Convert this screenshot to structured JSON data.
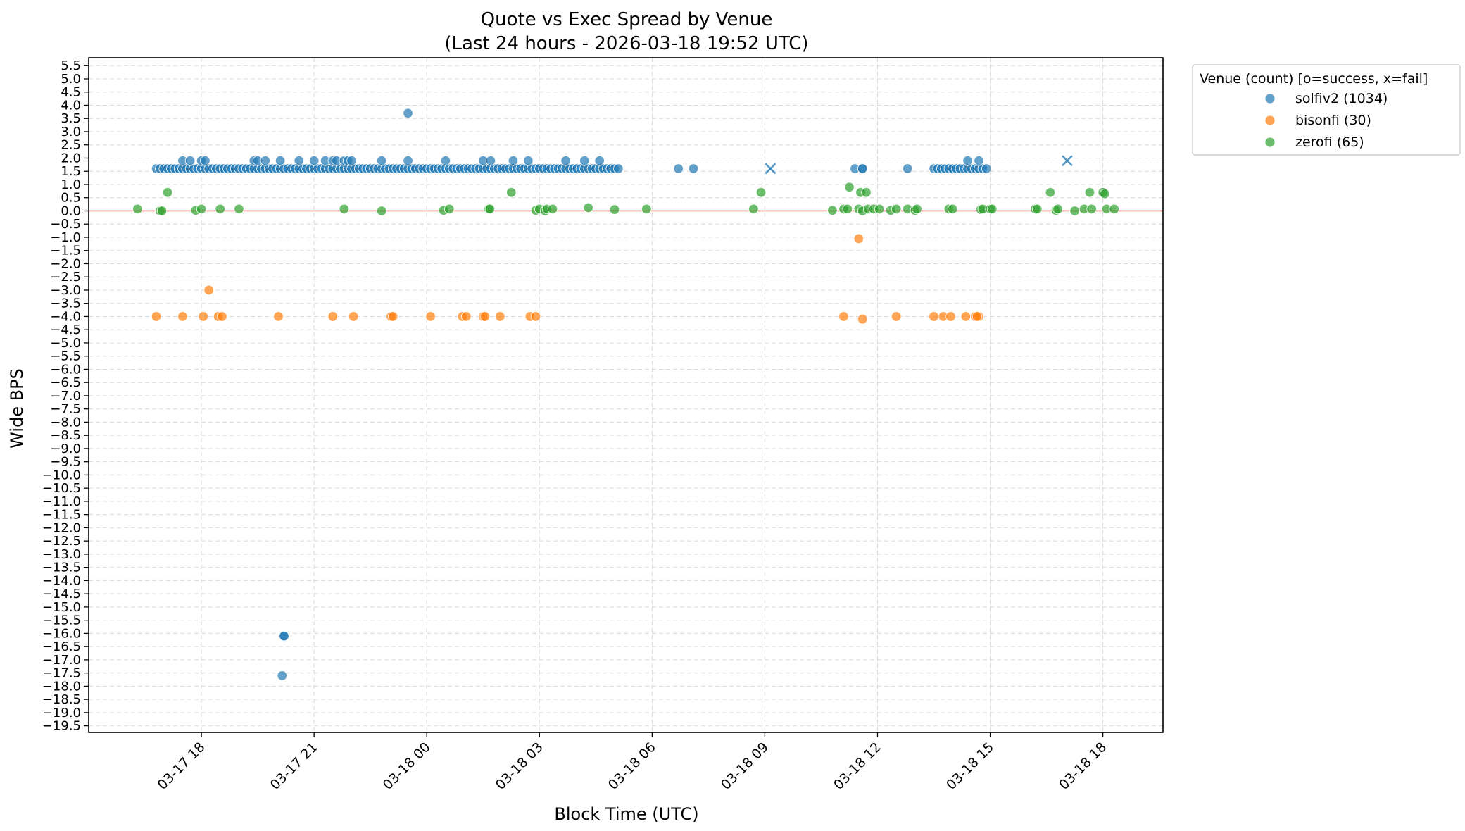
{
  "chart_data": {
    "type": "scatter",
    "title": "Quote vs Exec Spread by Venue",
    "subtitle": "(Last 24 hours - 2026-03-18 19:52 UTC)",
    "xlabel": "Block Time (UTC)",
    "ylabel": "Wide BPS",
    "x_unit": "hours relative to 2026-03-18 00:00 UTC",
    "xlim": [
      -9.0,
      19.6
    ],
    "ylim": [
      -19.75,
      5.8
    ],
    "x_ticks": [
      {
        "x": -6,
        "label": "03-17 18"
      },
      {
        "x": -3,
        "label": "03-17 21"
      },
      {
        "x": 0,
        "label": "03-18 00"
      },
      {
        "x": 3,
        "label": "03-18 03"
      },
      {
        "x": 6,
        "label": "03-18 06"
      },
      {
        "x": 9,
        "label": "03-18 09"
      },
      {
        "x": 12,
        "label": "03-18 12"
      },
      {
        "x": 15,
        "label": "03-18 15"
      },
      {
        "x": 18,
        "label": "03-18 18"
      }
    ],
    "y_tick_step": 0.5,
    "y_tick_min": -19.5,
    "y_tick_max": 5.5,
    "grid": true,
    "reference_line": {
      "y": 0,
      "color": "#e88080"
    },
    "legend": {
      "title": "Venue (count)  [o=success, x=fail]",
      "placement": "outside-right-top"
    },
    "series": [
      {
        "name": "solfiv2 (1034)",
        "color": "#1f77b4",
        "points": [
          [
            -7.2,
            1.6
          ],
          [
            -7.1,
            1.6
          ],
          [
            -7.0,
            1.6
          ],
          [
            -6.9,
            1.6
          ],
          [
            -6.8,
            1.6
          ],
          [
            -6.7,
            1.6
          ],
          [
            -6.6,
            1.6
          ],
          [
            -6.5,
            1.6
          ],
          [
            -6.4,
            1.6
          ],
          [
            -6.3,
            1.6
          ],
          [
            -6.2,
            1.6
          ],
          [
            -6.1,
            1.6
          ],
          [
            -6.0,
            1.6
          ],
          [
            -5.9,
            1.6
          ],
          [
            -5.8,
            1.6
          ],
          [
            -5.7,
            1.6
          ],
          [
            -5.6,
            1.6
          ],
          [
            -5.5,
            1.6
          ],
          [
            -5.4,
            1.6
          ],
          [
            -5.3,
            1.6
          ],
          [
            -5.2,
            1.6
          ],
          [
            -5.1,
            1.6
          ],
          [
            -5.0,
            1.6
          ],
          [
            -4.9,
            1.6
          ],
          [
            -4.8,
            1.6
          ],
          [
            -4.7,
            1.6
          ],
          [
            -4.6,
            1.6
          ],
          [
            -4.5,
            1.6
          ],
          [
            -4.4,
            1.6
          ],
          [
            -4.3,
            1.6
          ],
          [
            -4.2,
            1.6
          ],
          [
            -4.1,
            1.6
          ],
          [
            -4.0,
            1.6
          ],
          [
            -3.9,
            1.6
          ],
          [
            -3.8,
            1.6
          ],
          [
            -3.7,
            1.6
          ],
          [
            -3.6,
            1.6
          ],
          [
            -3.5,
            1.6
          ],
          [
            -3.4,
            1.6
          ],
          [
            -3.3,
            1.6
          ],
          [
            -3.2,
            1.6
          ],
          [
            -3.1,
            1.6
          ],
          [
            -3.0,
            1.6
          ],
          [
            -2.9,
            1.6
          ],
          [
            -2.8,
            1.6
          ],
          [
            -2.7,
            1.6
          ],
          [
            -2.6,
            1.6
          ],
          [
            -2.5,
            1.6
          ],
          [
            -2.4,
            1.6
          ],
          [
            -2.3,
            1.6
          ],
          [
            -2.2,
            1.6
          ],
          [
            -2.1,
            1.6
          ],
          [
            -2.0,
            1.6
          ],
          [
            -1.9,
            1.6
          ],
          [
            -1.8,
            1.6
          ],
          [
            -1.7,
            1.6
          ],
          [
            -1.6,
            1.6
          ],
          [
            -1.5,
            1.6
          ],
          [
            -1.4,
            1.6
          ],
          [
            -1.3,
            1.6
          ],
          [
            -1.2,
            1.6
          ],
          [
            -1.1,
            1.6
          ],
          [
            -1.0,
            1.6
          ],
          [
            -0.9,
            1.6
          ],
          [
            -0.8,
            1.6
          ],
          [
            -0.7,
            1.6
          ],
          [
            -0.6,
            1.6
          ],
          [
            -0.5,
            1.6
          ],
          [
            -0.4,
            1.6
          ],
          [
            -0.3,
            1.6
          ],
          [
            -0.2,
            1.6
          ],
          [
            -0.1,
            1.6
          ],
          [
            0.0,
            1.6
          ],
          [
            0.1,
            1.6
          ],
          [
            0.2,
            1.6
          ],
          [
            0.3,
            1.6
          ],
          [
            0.4,
            1.6
          ],
          [
            0.5,
            1.6
          ],
          [
            0.6,
            1.6
          ],
          [
            0.7,
            1.6
          ],
          [
            0.8,
            1.6
          ],
          [
            0.9,
            1.6
          ],
          [
            1.0,
            1.6
          ],
          [
            1.1,
            1.6
          ],
          [
            1.2,
            1.6
          ],
          [
            1.3,
            1.6
          ],
          [
            1.4,
            1.6
          ],
          [
            1.5,
            1.6
          ],
          [
            1.6,
            1.6
          ],
          [
            1.7,
            1.6
          ],
          [
            1.8,
            1.6
          ],
          [
            1.9,
            1.6
          ],
          [
            2.0,
            1.6
          ],
          [
            2.1,
            1.6
          ],
          [
            2.2,
            1.6
          ],
          [
            2.3,
            1.6
          ],
          [
            2.4,
            1.6
          ],
          [
            2.5,
            1.6
          ],
          [
            2.6,
            1.6
          ],
          [
            2.7,
            1.6
          ],
          [
            2.8,
            1.6
          ],
          [
            2.9,
            1.6
          ],
          [
            3.0,
            1.6
          ],
          [
            3.1,
            1.6
          ],
          [
            3.2,
            1.6
          ],
          [
            3.3,
            1.6
          ],
          [
            3.4,
            1.6
          ],
          [
            3.5,
            1.6
          ],
          [
            3.6,
            1.6
          ],
          [
            3.7,
            1.6
          ],
          [
            3.8,
            1.6
          ],
          [
            3.9,
            1.6
          ],
          [
            4.0,
            1.6
          ],
          [
            4.1,
            1.6
          ],
          [
            4.2,
            1.6
          ],
          [
            4.3,
            1.6
          ],
          [
            4.4,
            1.6
          ],
          [
            4.5,
            1.6
          ],
          [
            4.6,
            1.6
          ],
          [
            4.7,
            1.6
          ],
          [
            4.8,
            1.6
          ],
          [
            4.9,
            1.6
          ],
          [
            5.0,
            1.6
          ],
          [
            5.1,
            1.6
          ],
          [
            -6.5,
            1.9
          ],
          [
            -6.3,
            1.9
          ],
          [
            -6.0,
            1.9
          ],
          [
            -5.9,
            1.9
          ],
          [
            -4.6,
            1.9
          ],
          [
            -4.5,
            1.9
          ],
          [
            -4.3,
            1.9
          ],
          [
            -3.9,
            1.9
          ],
          [
            -3.4,
            1.9
          ],
          [
            -3.0,
            1.9
          ],
          [
            -2.7,
            1.9
          ],
          [
            -2.5,
            1.9
          ],
          [
            -2.4,
            1.9
          ],
          [
            -2.2,
            1.9
          ],
          [
            -2.1,
            1.9
          ],
          [
            -2.0,
            1.9
          ],
          [
            -1.2,
            1.9
          ],
          [
            -0.5,
            1.9
          ],
          [
            0.5,
            1.9
          ],
          [
            1.5,
            1.9
          ],
          [
            1.7,
            1.9
          ],
          [
            2.3,
            1.9
          ],
          [
            2.7,
            1.9
          ],
          [
            3.7,
            1.9
          ],
          [
            4.2,
            1.9
          ],
          [
            4.6,
            1.9
          ],
          [
            -0.5,
            3.7
          ],
          [
            -3.8,
            -16.1
          ],
          [
            -3.8,
            -16.1
          ],
          [
            -3.85,
            -17.6
          ],
          [
            6.7,
            1.6
          ],
          [
            7.1,
            1.6
          ],
          [
            11.4,
            1.6
          ],
          [
            11.6,
            1.6
          ],
          [
            11.6,
            1.6
          ],
          [
            12.8,
            1.6
          ],
          [
            13.5,
            1.6
          ],
          [
            13.6,
            1.6
          ],
          [
            13.7,
            1.6
          ],
          [
            13.8,
            1.6
          ],
          [
            13.9,
            1.6
          ],
          [
            14.0,
            1.6
          ],
          [
            14.1,
            1.6
          ],
          [
            14.2,
            1.6
          ],
          [
            14.3,
            1.6
          ],
          [
            14.4,
            1.6
          ],
          [
            14.5,
            1.6
          ],
          [
            14.6,
            1.6
          ],
          [
            14.7,
            1.6
          ],
          [
            14.8,
            1.6
          ],
          [
            14.9,
            1.6
          ],
          [
            14.4,
            1.9
          ],
          [
            14.7,
            1.9
          ]
        ],
        "fail_points": [
          [
            9.15,
            1.6
          ],
          [
            17.05,
            1.9
          ]
        ]
      },
      {
        "name": "bisonfi (30)",
        "color": "#ff7f0e",
        "points": [
          [
            -7.2,
            -4.0
          ],
          [
            -6.5,
            -4.0
          ],
          [
            -5.95,
            -4.0
          ],
          [
            -5.8,
            -3.0
          ],
          [
            -5.55,
            -4.0
          ],
          [
            -5.45,
            -4.0
          ],
          [
            -3.95,
            -4.0
          ],
          [
            -2.5,
            -4.0
          ],
          [
            -1.95,
            -4.0
          ],
          [
            -0.95,
            -4.0
          ],
          [
            -0.9,
            -4.0
          ],
          [
            0.1,
            -4.0
          ],
          [
            0.95,
            -4.0
          ],
          [
            1.05,
            -4.0
          ],
          [
            1.5,
            -4.0
          ],
          [
            1.55,
            -4.0
          ],
          [
            1.95,
            -4.0
          ],
          [
            2.75,
            -4.0
          ],
          [
            2.9,
            -4.0
          ],
          [
            11.1,
            -4.0
          ],
          [
            11.5,
            -1.05
          ],
          [
            11.6,
            -4.1
          ],
          [
            12.5,
            -4.0
          ],
          [
            13.5,
            -4.0
          ],
          [
            13.75,
            -4.0
          ],
          [
            13.95,
            -4.0
          ],
          [
            14.35,
            -4.0
          ],
          [
            14.6,
            -4.0
          ],
          [
            14.7,
            -4.0
          ],
          [
            14.65,
            -4.0
          ]
        ]
      },
      {
        "name": "zerofi (65)",
        "color": "#2ca02c",
        "points": [
          [
            -7.7,
            0.07
          ],
          [
            -7.1,
            0.0
          ],
          [
            -7.05,
            0.0
          ],
          [
            -6.9,
            0.7
          ],
          [
            -6.15,
            0.02
          ],
          [
            -6.0,
            0.07
          ],
          [
            -5.5,
            0.07
          ],
          [
            -5.0,
            0.07
          ],
          [
            -2.2,
            0.07
          ],
          [
            -1.2,
            0.0
          ],
          [
            0.45,
            0.02
          ],
          [
            0.6,
            0.07
          ],
          [
            1.65,
            0.07
          ],
          [
            1.68,
            0.07
          ],
          [
            2.25,
            0.7
          ],
          [
            2.9,
            0.02
          ],
          [
            3.0,
            0.07
          ],
          [
            3.15,
            0.0
          ],
          [
            3.2,
            0.07
          ],
          [
            3.35,
            0.07
          ],
          [
            4.3,
            0.12
          ],
          [
            5.0,
            0.05
          ],
          [
            5.85,
            0.07
          ],
          [
            8.7,
            0.07
          ],
          [
            8.9,
            0.7
          ],
          [
            10.8,
            0.02
          ],
          [
            11.1,
            0.07
          ],
          [
            11.2,
            0.07
          ],
          [
            11.25,
            0.9
          ],
          [
            11.5,
            0.07
          ],
          [
            11.55,
            0.7
          ],
          [
            11.6,
            0.0
          ],
          [
            11.7,
            0.7
          ],
          [
            11.75,
            0.07
          ],
          [
            11.9,
            0.07
          ],
          [
            12.05,
            0.07
          ],
          [
            12.35,
            0.02
          ],
          [
            12.5,
            0.07
          ],
          [
            12.8,
            0.07
          ],
          [
            13.0,
            0.02
          ],
          [
            13.05,
            0.07
          ],
          [
            13.9,
            0.07
          ],
          [
            14.0,
            0.07
          ],
          [
            14.75,
            0.05
          ],
          [
            14.8,
            0.07
          ],
          [
            15.0,
            0.07
          ],
          [
            15.05,
            0.07
          ],
          [
            16.2,
            0.07
          ],
          [
            16.25,
            0.07
          ],
          [
            16.6,
            0.7
          ],
          [
            16.75,
            0.02
          ],
          [
            16.8,
            0.07
          ],
          [
            17.25,
            0.0
          ],
          [
            17.5,
            0.07
          ],
          [
            17.65,
            0.7
          ],
          [
            17.7,
            0.07
          ],
          [
            18.0,
            0.7
          ],
          [
            18.05,
            0.65
          ],
          [
            18.1,
            0.07
          ],
          [
            18.3,
            0.07
          ]
        ]
      }
    ]
  }
}
